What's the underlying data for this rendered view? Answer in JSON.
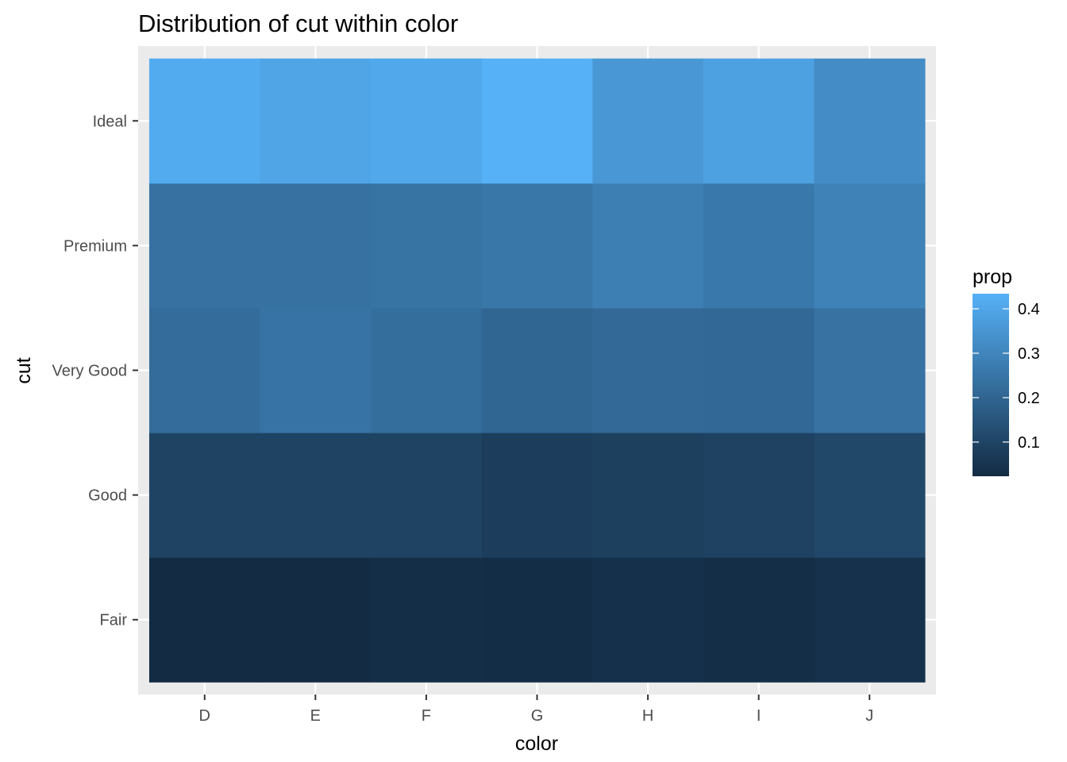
{
  "chart_data": {
    "type": "heatmap",
    "title": "Distribution of cut within color",
    "xlabel": "color",
    "ylabel": "cut",
    "x_categories": [
      "D",
      "E",
      "F",
      "G",
      "H",
      "I",
      "J"
    ],
    "y_categories": [
      "Fair",
      "Good",
      "Very Good",
      "Premium",
      "Ideal"
    ],
    "values": [
      [
        0.024,
        0.023,
        0.033,
        0.029,
        0.038,
        0.033,
        0.042
      ],
      [
        0.096,
        0.096,
        0.097,
        0.078,
        0.086,
        0.094,
        0.11
      ],
      [
        0.224,
        0.245,
        0.227,
        0.203,
        0.213,
        0.21,
        0.241
      ],
      [
        0.239,
        0.237,
        0.243,
        0.257,
        0.279,
        0.259,
        0.289
      ],
      [
        0.416,
        0.398,
        0.405,
        0.434,
        0.357,
        0.384,
        0.319
      ]
    ],
    "legend": {
      "title": "prop",
      "placement": "right",
      "ticks": [
        0.1,
        0.2,
        0.3,
        0.4
      ],
      "tick_labels": [
        "0.1",
        "0.2",
        "0.3",
        "0.4"
      ],
      "range": [
        0.023,
        0.434
      ],
      "low_color": "#132B43",
      "high_color": "#56B1F7"
    },
    "panel_background": "#EBEBEB",
    "grid": true
  }
}
